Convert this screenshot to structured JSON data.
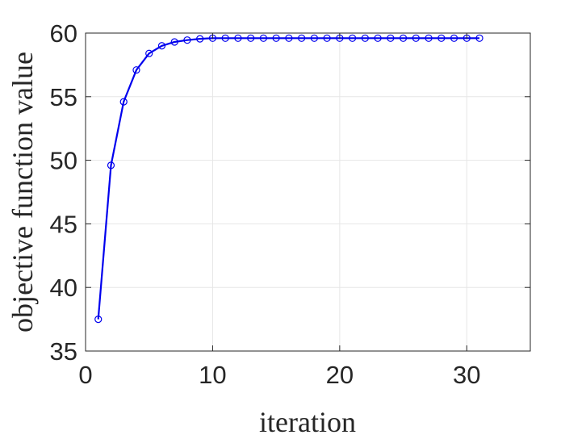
{
  "chart_data": {
    "type": "line",
    "xlabel": "iteration",
    "ylabel": "objective function value",
    "xlim": [
      0,
      35
    ],
    "ylim": [
      35,
      60
    ],
    "xticks": [
      0,
      10,
      20,
      30
    ],
    "yticks": [
      35,
      40,
      45,
      50,
      55,
      60
    ],
    "grid": true,
    "series": [
      {
        "color": "#0000ee",
        "marker": "circle-open",
        "x": [
          1,
          2,
          3,
          4,
          5,
          6,
          7,
          8,
          9,
          10,
          11,
          12,
          13,
          14,
          15,
          16,
          17,
          18,
          19,
          20,
          21,
          22,
          23,
          24,
          25,
          26,
          27,
          28,
          29,
          30,
          31
        ],
        "values": [
          37.5,
          49.6,
          54.6,
          57.1,
          58.4,
          59.0,
          59.3,
          59.45,
          59.55,
          59.6,
          59.6,
          59.6,
          59.6,
          59.6,
          59.6,
          59.6,
          59.6,
          59.6,
          59.6,
          59.6,
          59.6,
          59.6,
          59.6,
          59.6,
          59.6,
          59.6,
          59.6,
          59.6,
          59.6,
          59.6,
          59.6
        ]
      }
    ]
  }
}
